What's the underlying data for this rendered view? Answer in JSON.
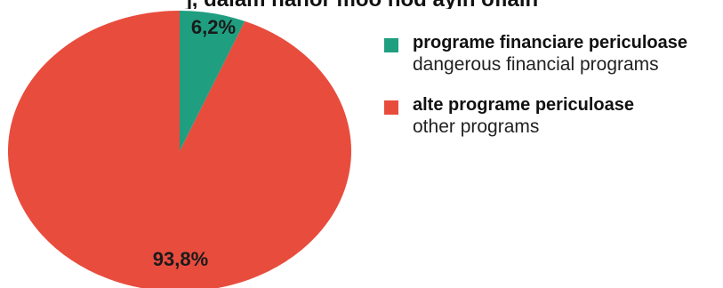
{
  "top_text": "], dalam nahor moo nod ayin ofiain",
  "chart_data": {
    "type": "pie",
    "title": "",
    "slices": [
      {
        "value": 6.2,
        "label": "6,2%",
        "color": "#1f9e80",
        "name": "programe financiare periculoase",
        "name_en": "dangerous financial programs"
      },
      {
        "value": 93.8,
        "label": "93,8%",
        "color": "#e84c3d",
        "name": "alte programe periculoase",
        "name_en": "other programs"
      }
    ],
    "legend_position": "right"
  }
}
